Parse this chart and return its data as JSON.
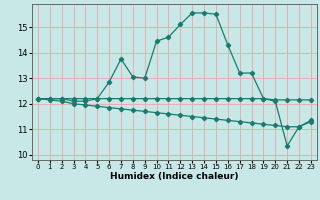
{
  "title": "",
  "xlabel": "Humidex (Indice chaleur)",
  "background_color": "#c8e8e8",
  "grid_color": "#e8a8a8",
  "line_color": "#1a7a6e",
  "xlim": [
    -0.5,
    23.5
  ],
  "ylim": [
    9.8,
    15.9
  ],
  "xticks": [
    0,
    1,
    2,
    3,
    4,
    5,
    6,
    7,
    8,
    9,
    10,
    11,
    12,
    13,
    14,
    15,
    16,
    17,
    18,
    19,
    20,
    21,
    22,
    23
  ],
  "yticks": [
    10,
    11,
    12,
    13,
    14,
    15
  ],
  "series1_x": [
    0,
    1,
    2,
    3,
    4,
    5,
    6,
    7,
    8,
    9,
    10,
    11,
    12,
    13,
    14,
    15,
    16,
    17,
    18,
    19,
    20,
    21,
    22,
    23
  ],
  "series1_y": [
    12.2,
    12.2,
    12.2,
    12.1,
    12.1,
    12.2,
    12.85,
    13.75,
    13.05,
    13.0,
    14.45,
    14.6,
    15.1,
    15.55,
    15.55,
    15.5,
    14.3,
    13.2,
    13.2,
    12.2,
    12.1,
    10.35,
    11.1,
    11.35
  ],
  "series2_x": [
    0,
    1,
    2,
    3,
    4,
    5,
    6,
    7,
    8,
    9,
    10,
    11,
    12,
    13,
    14,
    15,
    16,
    17,
    18,
    19,
    20,
    21,
    22,
    23
  ],
  "series2_y": [
    12.2,
    12.2,
    12.2,
    12.2,
    12.2,
    12.2,
    12.2,
    12.2,
    12.2,
    12.2,
    12.2,
    12.2,
    12.2,
    12.2,
    12.2,
    12.2,
    12.2,
    12.2,
    12.2,
    12.2,
    12.15,
    12.15,
    12.15,
    12.15
  ],
  "series3_x": [
    0,
    1,
    2,
    3,
    4,
    5,
    6,
    7,
    8,
    9,
    10,
    11,
    12,
    13,
    14,
    15,
    16,
    17,
    18,
    19,
    20,
    21,
    22,
    23
  ],
  "series3_y": [
    12.2,
    12.15,
    12.1,
    12.0,
    11.95,
    11.9,
    11.85,
    11.8,
    11.75,
    11.7,
    11.65,
    11.6,
    11.55,
    11.5,
    11.45,
    11.4,
    11.35,
    11.3,
    11.25,
    11.2,
    11.15,
    11.1,
    11.1,
    11.3
  ]
}
